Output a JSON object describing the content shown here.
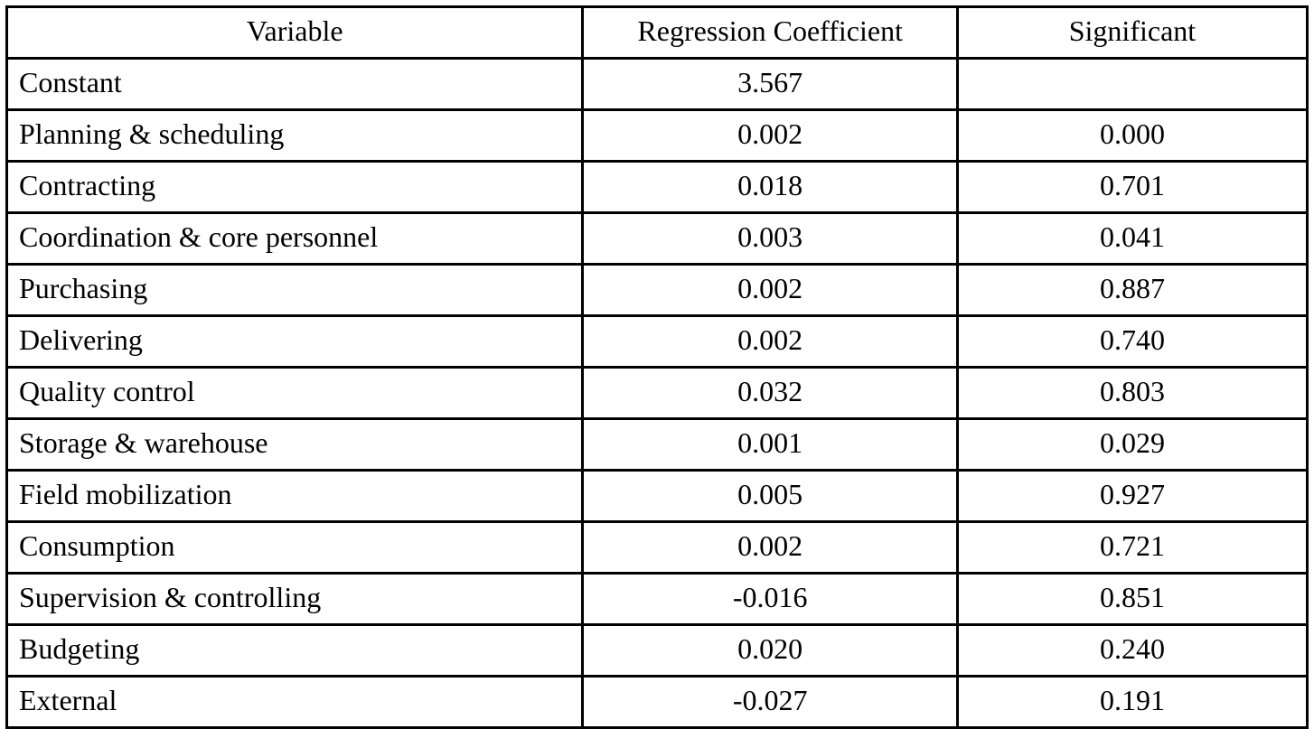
{
  "table": {
    "columns": [
      "Variable",
      "Regression Coefficient",
      "Significant"
    ],
    "rows": [
      [
        "Constant",
        "3.567",
        ""
      ],
      [
        "Planning & scheduling",
        "0.002",
        "0.000"
      ],
      [
        "Contracting",
        "0.018",
        "0.701"
      ],
      [
        "Coordination & core personnel",
        "0.003",
        "0.041"
      ],
      [
        "Purchasing",
        "0.002",
        "0.887"
      ],
      [
        "Delivering",
        "0.002",
        "0.740"
      ],
      [
        "Quality control",
        "0.032",
        "0.803"
      ],
      [
        "Storage & warehouse",
        "0.001",
        "0.029"
      ],
      [
        "Field mobilization",
        "0.005",
        "0.927"
      ],
      [
        "Consumption",
        "0.002",
        "0.721"
      ],
      [
        "Supervision & controlling",
        "-0.016",
        "0.851"
      ],
      [
        "Budgeting",
        "0.020",
        "0.240"
      ],
      [
        "External",
        "-0.027",
        "0.191"
      ]
    ]
  },
  "colors": {
    "border": "#000000",
    "text": "#000000",
    "background": "#ffffff"
  }
}
